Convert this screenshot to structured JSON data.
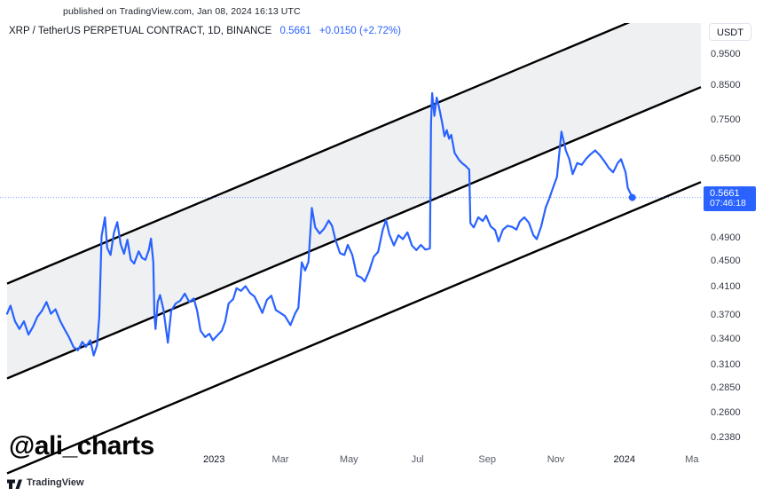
{
  "header": {
    "published": "published on TradingView.com, Jan 08, 2024 16:13 UTC",
    "symbol": "XRP / TetherUS PERPETUAL CONTRACT, 1D, BINANCE",
    "price": "0.5661",
    "change": "+0.0150 (+2.72%)"
  },
  "currency_button": {
    "label": "USDT"
  },
  "badge": {
    "price": "0.5661",
    "countdown": "07:46:18"
  },
  "watermark": {
    "text": "@ali_charts"
  },
  "footer": {
    "brand": "TradingView"
  },
  "colors": {
    "accent": "#2962ff",
    "channel": "#000000",
    "band": "#eef0f2",
    "badge_bg": "#2962ff"
  },
  "chart_data": {
    "type": "line",
    "symbol": "XRP / TetherUS Perpetual Contract",
    "exchange": "BINANCE",
    "interval": "1D",
    "quote_currency": "USDT",
    "last_price": 0.5661,
    "change_abs": 0.015,
    "change_pct": 2.72,
    "scale": "log",
    "grid": false,
    "x_range": [
      "2022-07-01",
      "2024-03-09"
    ],
    "y_range": [
      0.21,
      1.056
    ],
    "price_ticks": [
      0.95,
      0.85,
      0.75,
      0.65,
      0.49,
      0.45,
      0.41,
      0.37,
      0.34,
      0.31,
      0.285,
      0.26,
      0.238
    ],
    "x_ticks": [
      {
        "text": "2023",
        "date": "2023-01-01",
        "year": true
      },
      {
        "text": "Mar",
        "date": "2023-03-01",
        "year": false
      },
      {
        "text": "May",
        "date": "2023-05-01",
        "year": false
      },
      {
        "text": "Jul",
        "date": "2023-07-01",
        "year": false
      },
      {
        "text": "Sep",
        "date": "2023-09-01",
        "year": false
      },
      {
        "text": "Nov",
        "date": "2023-11-01",
        "year": false
      },
      {
        "text": "2024",
        "date": "2024-01-01",
        "year": true
      },
      {
        "text": "Ma",
        "date": "2024-03-01",
        "year": false
      }
    ],
    "channel": {
      "x": [
        "2022-07-01",
        "2024-03-09"
      ],
      "lines": {
        "top": [
          0.4148,
          1.188
        ],
        "middle": [
          0.2945,
          0.8433
        ],
        "bottom": [
          0.209,
          0.5985
        ]
      },
      "fill_between": [
        "top",
        "middle"
      ]
    },
    "series": [
      [
        "2022-07-01",
        0.372
      ],
      [
        "2022-07-04",
        0.383
      ],
      [
        "2022-07-08",
        0.362
      ],
      [
        "2022-07-12",
        0.352
      ],
      [
        "2022-07-16",
        0.362
      ],
      [
        "2022-07-20",
        0.345
      ],
      [
        "2022-07-24",
        0.355
      ],
      [
        "2022-07-28",
        0.368
      ],
      [
        "2022-08-01",
        0.376
      ],
      [
        "2022-08-05",
        0.388
      ],
      [
        "2022-08-09",
        0.372
      ],
      [
        "2022-08-13",
        0.378
      ],
      [
        "2022-08-17",
        0.363
      ],
      [
        "2022-08-21",
        0.352
      ],
      [
        "2022-08-25",
        0.342
      ],
      [
        "2022-08-29",
        0.33
      ],
      [
        "2022-09-02",
        0.326
      ],
      [
        "2022-09-06",
        0.336
      ],
      [
        "2022-09-09",
        0.33
      ],
      [
        "2022-09-13",
        0.338
      ],
      [
        "2022-09-16",
        0.32
      ],
      [
        "2022-09-19",
        0.332
      ],
      [
        "2022-09-21",
        0.368
      ],
      [
        "2022-09-23",
        0.492
      ],
      [
        "2022-09-26",
        0.527
      ],
      [
        "2022-09-28",
        0.472
      ],
      [
        "2022-10-01",
        0.46
      ],
      [
        "2022-10-04",
        0.498
      ],
      [
        "2022-10-07",
        0.518
      ],
      [
        "2022-10-10",
        0.478
      ],
      [
        "2022-10-13",
        0.462
      ],
      [
        "2022-10-16",
        0.486
      ],
      [
        "2022-10-19",
        0.452
      ],
      [
        "2022-10-22",
        0.446
      ],
      [
        "2022-10-26",
        0.466
      ],
      [
        "2022-10-29",
        0.455
      ],
      [
        "2022-11-01",
        0.452
      ],
      [
        "2022-11-04",
        0.468
      ],
      [
        "2022-11-06",
        0.488
      ],
      [
        "2022-11-08",
        0.448
      ],
      [
        "2022-11-09",
        0.372
      ],
      [
        "2022-11-10",
        0.352
      ],
      [
        "2022-11-12",
        0.388
      ],
      [
        "2022-11-14",
        0.398
      ],
      [
        "2022-11-17",
        0.378
      ],
      [
        "2022-11-21",
        0.335
      ],
      [
        "2022-11-24",
        0.376
      ],
      [
        "2022-11-28",
        0.386
      ],
      [
        "2022-12-02",
        0.39
      ],
      [
        "2022-12-06",
        0.4
      ],
      [
        "2022-12-10",
        0.388
      ],
      [
        "2022-12-14",
        0.393
      ],
      [
        "2022-12-17",
        0.376
      ],
      [
        "2022-12-20",
        0.35
      ],
      [
        "2022-12-24",
        0.342
      ],
      [
        "2022-12-28",
        0.346
      ],
      [
        "2022-12-31",
        0.338
      ],
      [
        "2023-01-04",
        0.344
      ],
      [
        "2023-01-08",
        0.35
      ],
      [
        "2023-01-11",
        0.362
      ],
      [
        "2023-01-14",
        0.386
      ],
      [
        "2023-01-18",
        0.392
      ],
      [
        "2023-01-21",
        0.408
      ],
      [
        "2023-01-25",
        0.404
      ],
      [
        "2023-01-29",
        0.411
      ],
      [
        "2023-02-02",
        0.401
      ],
      [
        "2023-02-06",
        0.396
      ],
      [
        "2023-02-10",
        0.383
      ],
      [
        "2023-02-13",
        0.373
      ],
      [
        "2023-02-17",
        0.391
      ],
      [
        "2023-02-21",
        0.397
      ],
      [
        "2023-02-25",
        0.377
      ],
      [
        "2023-03-01",
        0.373
      ],
      [
        "2023-03-05",
        0.369
      ],
      [
        "2023-03-10",
        0.357
      ],
      [
        "2023-03-14",
        0.372
      ],
      [
        "2023-03-17",
        0.38
      ],
      [
        "2023-03-20",
        0.448
      ],
      [
        "2023-03-23",
        0.435
      ],
      [
        "2023-03-26",
        0.449
      ],
      [
        "2023-03-29",
        0.545
      ],
      [
        "2023-04-01",
        0.508
      ],
      [
        "2023-04-05",
        0.497
      ],
      [
        "2023-04-09",
        0.506
      ],
      [
        "2023-04-13",
        0.521
      ],
      [
        "2023-04-16",
        0.511
      ],
      [
        "2023-04-19",
        0.486
      ],
      [
        "2023-04-23",
        0.463
      ],
      [
        "2023-04-27",
        0.46
      ],
      [
        "2023-04-30",
        0.477
      ],
      [
        "2023-05-04",
        0.46
      ],
      [
        "2023-05-08",
        0.427
      ],
      [
        "2023-05-12",
        0.424
      ],
      [
        "2023-05-15",
        0.418
      ],
      [
        "2023-05-19",
        0.434
      ],
      [
        "2023-05-23",
        0.457
      ],
      [
        "2023-05-27",
        0.465
      ],
      [
        "2023-05-31",
        0.503
      ],
      [
        "2023-06-03",
        0.522
      ],
      [
        "2023-06-06",
        0.495
      ],
      [
        "2023-06-10",
        0.476
      ],
      [
        "2023-06-14",
        0.494
      ],
      [
        "2023-06-18",
        0.487
      ],
      [
        "2023-06-22",
        0.499
      ],
      [
        "2023-06-26",
        0.476
      ],
      [
        "2023-06-30",
        0.468
      ],
      [
        "2023-07-04",
        0.477
      ],
      [
        "2023-07-08",
        0.469
      ],
      [
        "2023-07-12",
        0.471
      ],
      [
        "2023-07-13",
        0.738
      ],
      [
        "2023-07-14",
        0.825
      ],
      [
        "2023-07-16",
        0.76
      ],
      [
        "2023-07-18",
        0.812
      ],
      [
        "2023-07-20",
        0.786
      ],
      [
        "2023-07-23",
        0.74
      ],
      [
        "2023-07-25",
        0.706
      ],
      [
        "2023-07-27",
        0.722
      ],
      [
        "2023-07-29",
        0.7
      ],
      [
        "2023-07-31",
        0.71
      ],
      [
        "2023-08-03",
        0.665
      ],
      [
        "2023-08-07",
        0.648
      ],
      [
        "2023-08-10",
        0.64
      ],
      [
        "2023-08-13",
        0.634
      ],
      [
        "2023-08-16",
        0.626
      ],
      [
        "2023-08-17",
        0.516
      ],
      [
        "2023-08-20",
        0.508
      ],
      [
        "2023-08-24",
        0.527
      ],
      [
        "2023-08-28",
        0.52
      ],
      [
        "2023-08-31",
        0.53
      ],
      [
        "2023-09-04",
        0.51
      ],
      [
        "2023-09-08",
        0.503
      ],
      [
        "2023-09-11",
        0.483
      ],
      [
        "2023-09-15",
        0.504
      ],
      [
        "2023-09-19",
        0.511
      ],
      [
        "2023-09-23",
        0.509
      ],
      [
        "2023-09-27",
        0.504
      ],
      [
        "2023-09-30",
        0.519
      ],
      [
        "2023-10-04",
        0.527
      ],
      [
        "2023-10-08",
        0.517
      ],
      [
        "2023-10-12",
        0.494
      ],
      [
        "2023-10-15",
        0.487
      ],
      [
        "2023-10-19",
        0.51
      ],
      [
        "2023-10-23",
        0.546
      ],
      [
        "2023-10-26",
        0.563
      ],
      [
        "2023-10-30",
        0.59
      ],
      [
        "2023-11-02",
        0.61
      ],
      [
        "2023-11-06",
        0.718
      ],
      [
        "2023-11-10",
        0.67
      ],
      [
        "2023-11-13",
        0.65
      ],
      [
        "2023-11-16",
        0.616
      ],
      [
        "2023-11-20",
        0.641
      ],
      [
        "2023-11-24",
        0.637
      ],
      [
        "2023-11-28",
        0.651
      ],
      [
        "2023-12-02",
        0.662
      ],
      [
        "2023-12-06",
        0.671
      ],
      [
        "2023-12-10",
        0.66
      ],
      [
        "2023-12-14",
        0.646
      ],
      [
        "2023-12-18",
        0.63
      ],
      [
        "2023-12-22",
        0.62
      ],
      [
        "2023-12-26",
        0.641
      ],
      [
        "2023-12-29",
        0.65
      ],
      [
        "2024-01-02",
        0.62
      ],
      [
        "2024-01-04",
        0.586
      ],
      [
        "2024-01-06",
        0.576
      ],
      [
        "2024-01-08",
        0.5661
      ]
    ]
  }
}
